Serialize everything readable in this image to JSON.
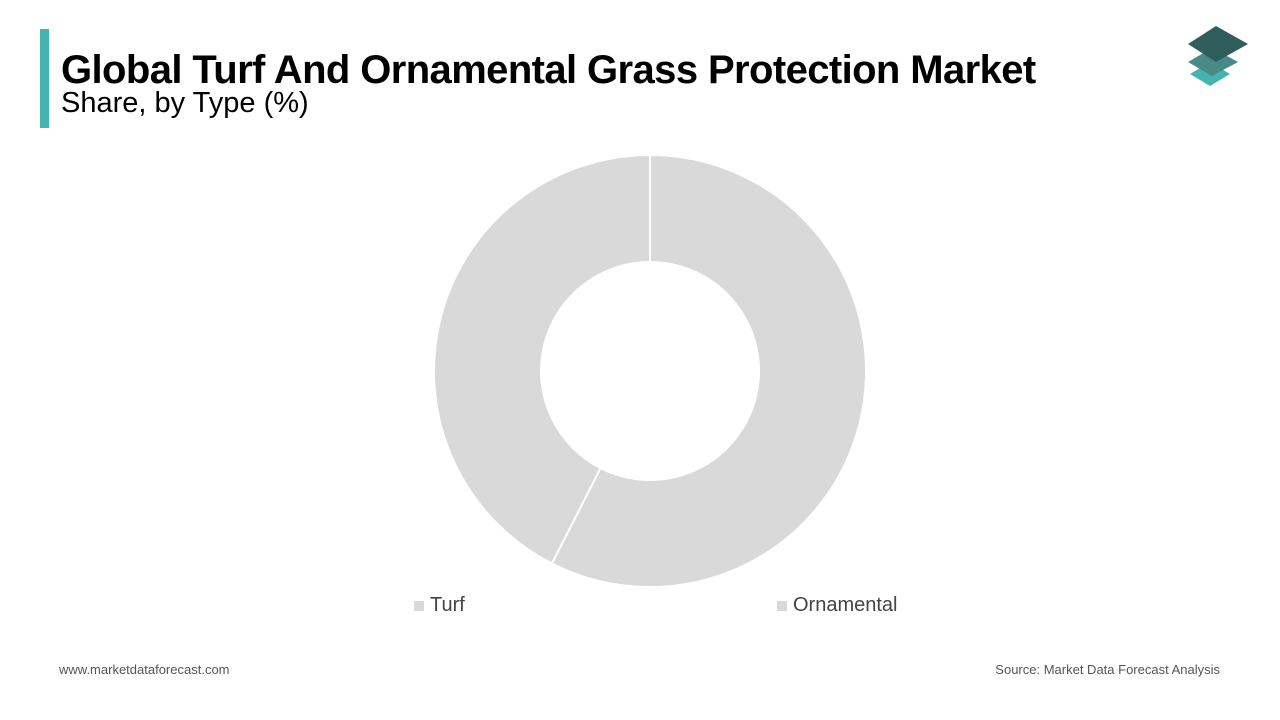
{
  "header": {
    "title": "Global Turf And Ornamental Grass Protection Market",
    "subtitle": "Share, by Type (%)",
    "accent_color": "#45b3b0"
  },
  "logo": {
    "icon": "stacked-layers-icon",
    "colors": [
      "#2f5e5c",
      "#4a8a86",
      "#45b3b0"
    ]
  },
  "chart_data": {
    "type": "pie",
    "donut": true,
    "categories": [
      "Turf",
      "Ornamental"
    ],
    "values": [
      57.5,
      42.5
    ],
    "colors": [
      "#d9d9d9",
      "#d9d9d9"
    ],
    "legend_position": "bottom"
  },
  "footer": {
    "website": "www.marketdataforecast.com",
    "source": "Source: Market Data Forecast Analysis"
  }
}
